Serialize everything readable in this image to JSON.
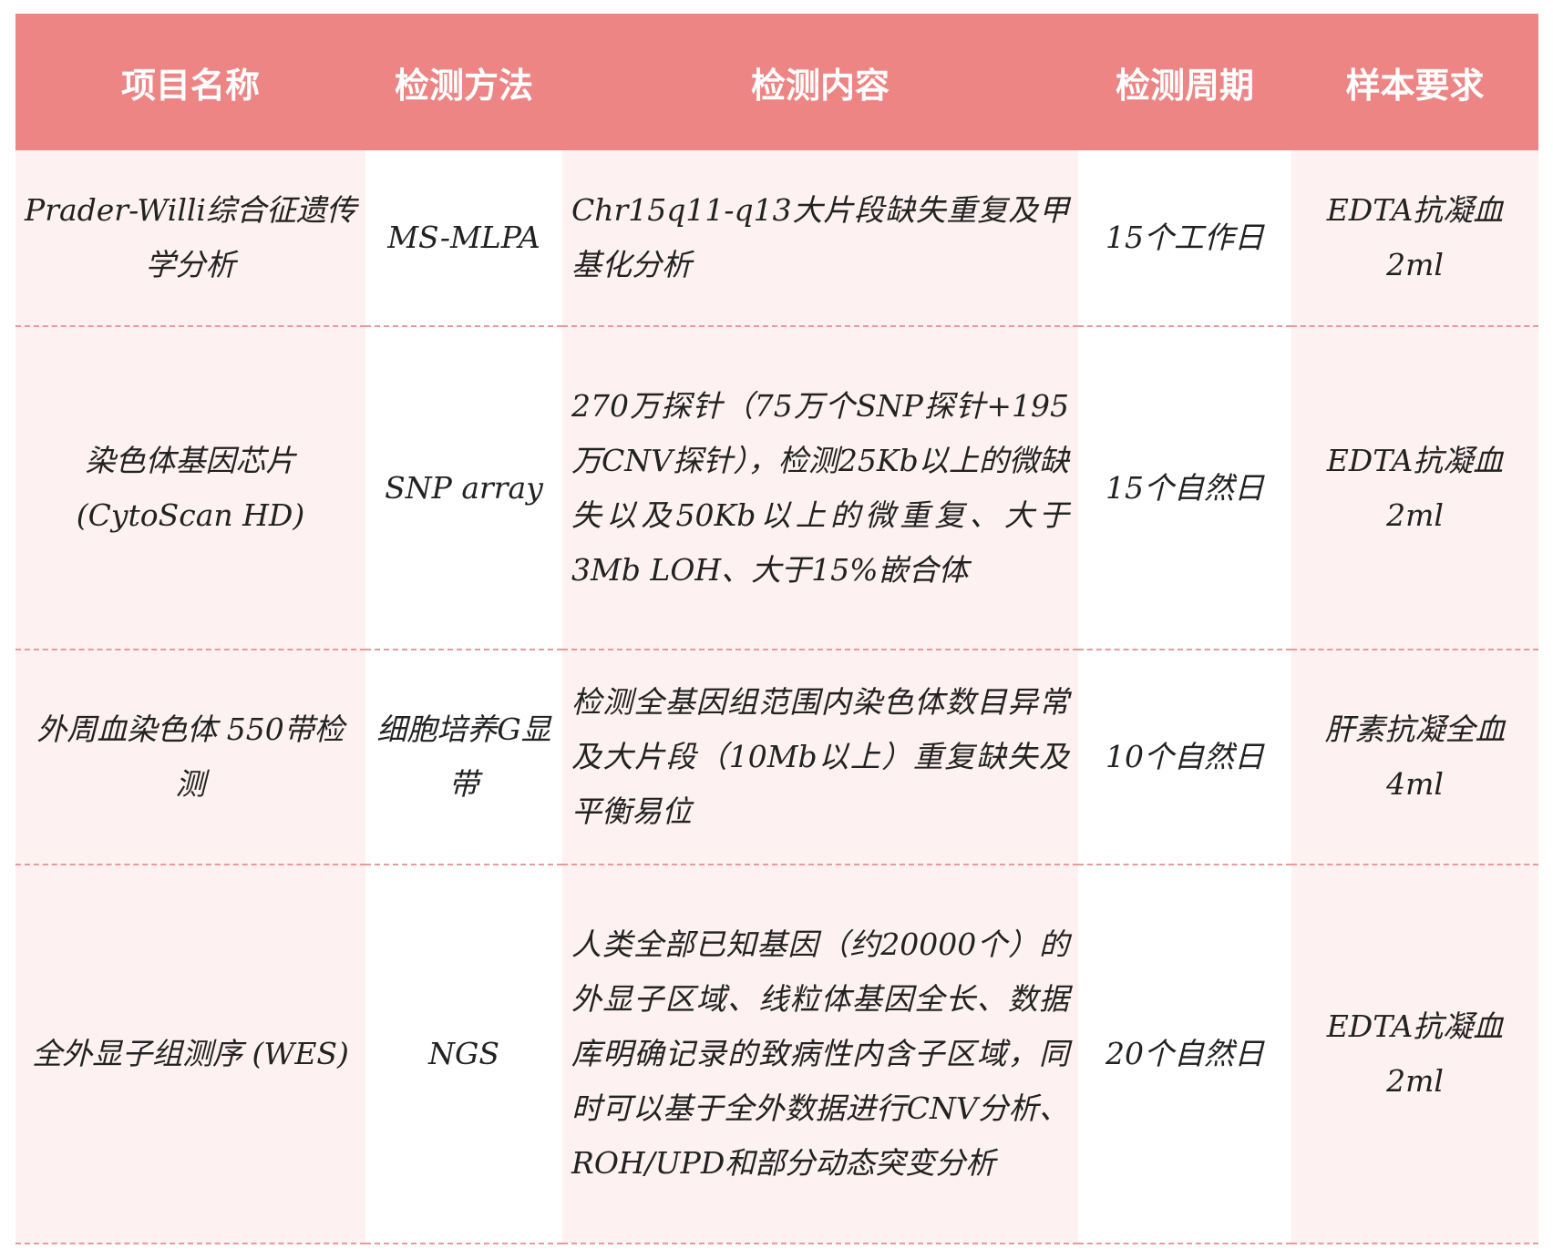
{
  "table": {
    "headers": [
      "项目名称",
      "检测方法",
      "检测内容",
      "检测周期",
      "样本要求"
    ],
    "rows": [
      {
        "name": "Prader-Willi综合征遗传学分析",
        "method": "MS-MLPA",
        "content": "Chr15q11-q13大片段缺失重复及甲基化分析",
        "period": "15个工作日",
        "sample": "EDTA抗凝血 2ml"
      },
      {
        "name": "染色体基因芯片 (CytoScan HD)",
        "method": "SNP array",
        "content": "270万探针（75万个SNP探针+195万CNV探针），检测25Kb以上的微缺失以及50Kb以上的微重复、大于3Mb LOH、大于15%嵌合体",
        "period": "15个自然日",
        "sample": "EDTA抗凝血 2ml"
      },
      {
        "name": "外周血染色体 550带检测",
        "method": "细胞培养G显带",
        "content": "检测全基因组范围内染色体数目异常及大片段（10Mb以上）重复缺失及平衡易位",
        "period": "10个自然日",
        "sample": "肝素抗凝全血 4ml"
      },
      {
        "name": "全外显子组测序 (WES)",
        "method": "NGS",
        "content": "人类全部已知基因（约20000个）的外显子区域、线粒体基因全长、数据库明确记录的致病性内含子区域，同时可以基于全外数据进行CNV分析、ROH/UPD和部分动态突变分析",
        "period": "20个自然日",
        "sample": "EDTA抗凝血 2ml"
      }
    ]
  },
  "colors": {
    "header": "#ee8585",
    "pink_cell": "#fdf1f1",
    "divider": "#e99a9a"
  }
}
